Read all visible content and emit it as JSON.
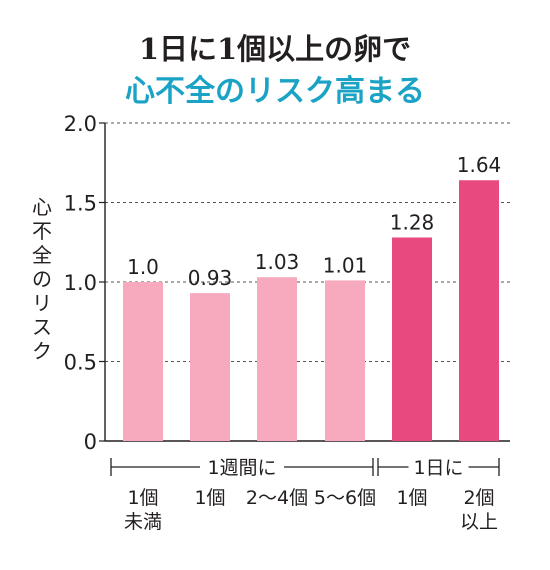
{
  "title_line1": "1日に1個以上の卵で",
  "title_line2": "心不全のリスク高まる",
  "colors": {
    "title_accent": "#1aa3c4",
    "bar_light": "#f7a9be",
    "bar_dark": "#e84a80"
  },
  "chart_data": {
    "type": "bar",
    "ylabel": "心不全のリスク",
    "ylim": [
      0,
      2.0
    ],
    "yticks": [
      "0",
      "0.5",
      "1.0",
      "1.5",
      "2.0"
    ],
    "grid": true,
    "categories": [
      "1個未満",
      "1個",
      "2～4個",
      "5～6個",
      "1個",
      "2個以上"
    ],
    "category_lines": [
      [
        "1個",
        "未満"
      ],
      [
        "1個"
      ],
      [
        "2～4個"
      ],
      [
        "5～6個"
      ],
      [
        "1個"
      ],
      [
        "2個",
        "以上"
      ]
    ],
    "values": [
      1.0,
      0.93,
      1.03,
      1.01,
      1.28,
      1.64
    ],
    "value_labels": [
      "1.0",
      "0.93",
      "1.03",
      "1.01",
      "1.28",
      "1.64"
    ],
    "groups": [
      {
        "label": "1週間に",
        "span": [
          0,
          3
        ]
      },
      {
        "label": "1日に",
        "span": [
          4,
          5
        ]
      }
    ]
  }
}
